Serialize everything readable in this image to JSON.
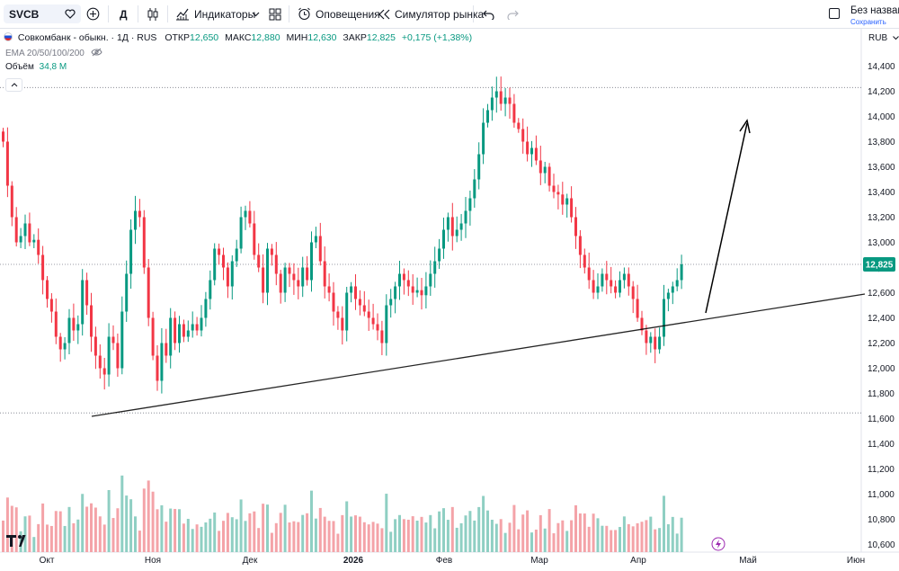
{
  "toolbar": {
    "symbol": "SVCB",
    "interval": "Д",
    "indicators": "Индикаторы",
    "alerts": "Оповещения",
    "replay": "Симулятор рынка",
    "layout_name": "Без названи",
    "save_label": "Сохранить",
    "currency": "RUB"
  },
  "legend": {
    "name": "Совкомбанк - обыкн. · 1Д · RUS",
    "open_label": "ОТКР",
    "open": "12,650",
    "high_label": "МАКС",
    "high": "12,880",
    "low_label": "МИН",
    "low": "12,630",
    "close_label": "ЗАКР",
    "close": "12,825",
    "change": "+0,175 (+1,38%)",
    "ema": "EMA 20/50/100/200",
    "volume_label": "Объём",
    "volume": "34,8 M"
  },
  "colors": {
    "up": "#089981",
    "down": "#f23645",
    "up_vol": "#8fcfc3",
    "down_vol": "#f4a3a8",
    "price_tag": "#089981",
    "trend_line": "#000000"
  },
  "chart_data": {
    "type": "candlestick",
    "symbol": "SVCB",
    "currency": "RUB",
    "y_ticks": [
      "14,400",
      "14,200",
      "14,000",
      "13,800",
      "13,600",
      "13,400",
      "13,200",
      "13,000",
      "12,800",
      "12,600",
      "12,400",
      "12,200",
      "12,000",
      "11,800",
      "11,600",
      "11,400",
      "11,200",
      "11,000",
      "10,800",
      "10,600"
    ],
    "x_ticks": [
      {
        "label": "Окт",
        "bold": false
      },
      {
        "label": "Ноя",
        "bold": false
      },
      {
        "label": "Дек",
        "bold": false
      },
      {
        "label": "2026",
        "bold": true
      },
      {
        "label": "Фев",
        "bold": false
      },
      {
        "label": "Мар",
        "bold": false
      },
      {
        "label": "Апр",
        "bold": false
      },
      {
        "label": "Май",
        "bold": false
      },
      {
        "label": "Июн",
        "bold": false
      }
    ],
    "last_price": 12.825,
    "last_price_label": "12,825",
    "horizontal_levels": [
      14.23,
      12.825,
      11.645
    ],
    "close": [
      13.8,
      13.45,
      13.2,
      13.0,
      13.05,
      13.15,
      13.0,
      13.02,
      12.9,
      12.7,
      12.55,
      12.45,
      12.25,
      12.15,
      12.2,
      12.4,
      12.3,
      12.35,
      12.7,
      12.5,
      12.25,
      12.1,
      12.0,
      11.95,
      12.25,
      12.2,
      12.0,
      12.45,
      12.75,
      13.1,
      13.25,
      13.2,
      12.8,
      12.4,
      12.1,
      11.9,
      12.2,
      12.1,
      12.4,
      12.2,
      12.35,
      12.25,
      12.3,
      12.35,
      12.3,
      12.4,
      12.55,
      12.7,
      12.95,
      12.9,
      12.8,
      12.65,
      12.85,
      12.95,
      13.2,
      13.25,
      13.15,
      12.9,
      12.8,
      12.6,
      12.95,
      12.9,
      12.75,
      12.6,
      12.8,
      12.75,
      12.7,
      12.65,
      12.8,
      12.7,
      13.0,
      13.05,
      12.85,
      12.65,
      12.6,
      12.45,
      12.4,
      12.3,
      12.6,
      12.65,
      12.55,
      12.5,
      12.45,
      12.4,
      12.35,
      12.3,
      12.2,
      12.5,
      12.55,
      12.65,
      12.75,
      12.7,
      12.65,
      12.6,
      12.62,
      12.58,
      12.65,
      12.75,
      12.85,
      12.95,
      13.1,
      13.2,
      13.05,
      13.1,
      13.15,
      13.25,
      13.35,
      13.5,
      13.7,
      13.95,
      14.05,
      14.15,
      14.2,
      14.1,
      14.15,
      14.1,
      13.95,
      13.9,
      13.8,
      13.7,
      13.75,
      13.65,
      13.55,
      13.6,
      13.45,
      13.4,
      13.38,
      13.3,
      13.35,
      13.2,
      13.05,
      12.9,
      12.8,
      12.7,
      12.6,
      12.65,
      12.75,
      12.7,
      12.65,
      12.6,
      12.7,
      12.75,
      12.65,
      12.55,
      12.4,
      12.3,
      12.2,
      12.25,
      12.15,
      12.25,
      12.55,
      12.6,
      12.65,
      12.7,
      12.825
    ]
  }
}
